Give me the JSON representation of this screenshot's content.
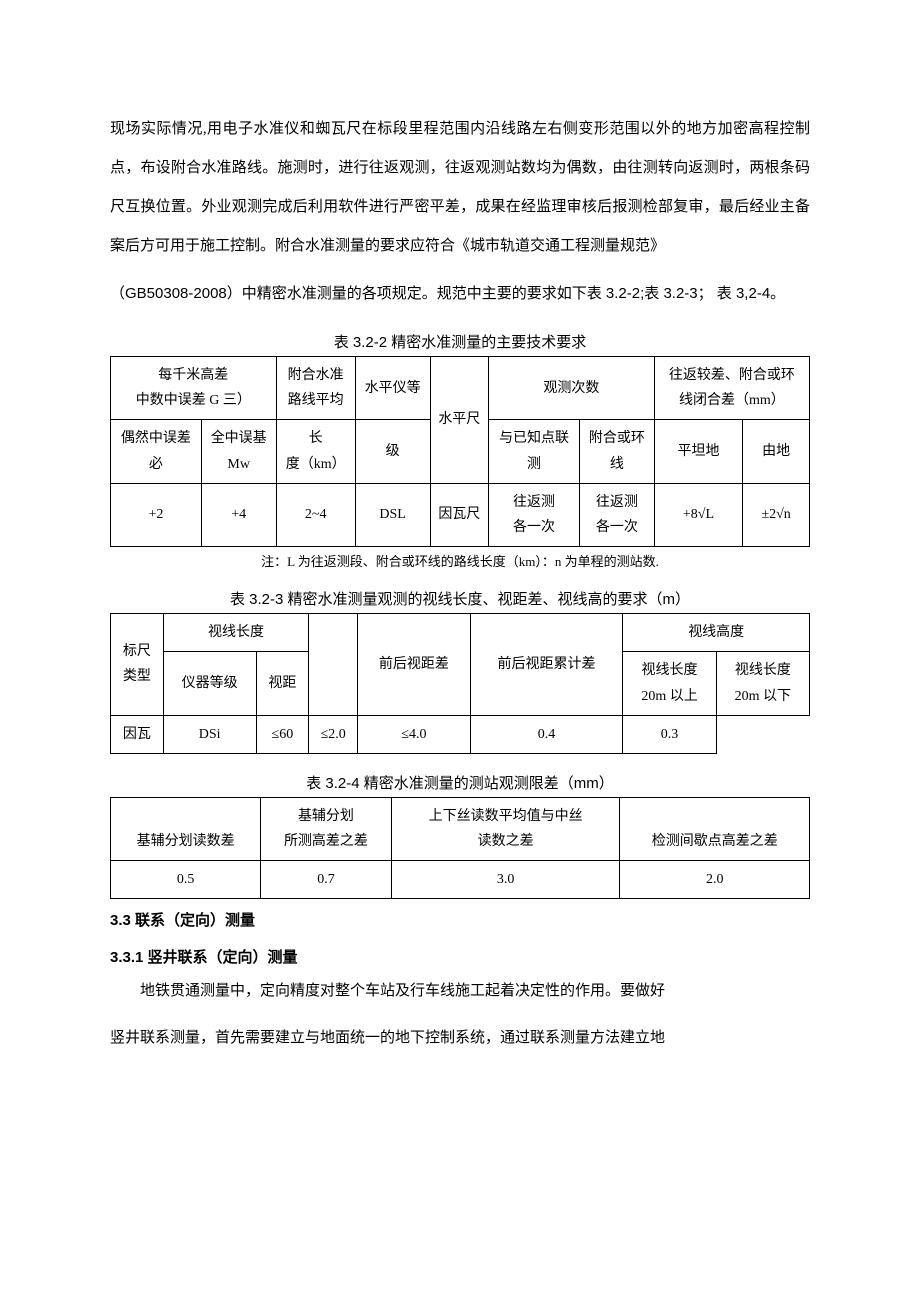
{
  "paragraph1": "现场实际情况,用电子水准仪和蜘瓦尺在标段里程范围内沿线路左右侧变形范围以外的地方加密高程控制点，布设附合水准路线。施测时，进行往返观测，往返观测站数均为偶数，由往测转向返测时，两根条码尺互换位置。外业观测完成后利用软件进行严密平差，成果在经监理审核后报测检部复审，最后经业主备案后方可用于施工控制。附合水准测量的要求应符合《城市轨道交通工程测量规范》",
  "paragraph2": "（GB50308-2008）中精密水准测量的各项规定。规范中主要的要求如下表 3.2-2;表 3.2-3； 表 3,2-4。",
  "table1": {
    "caption": "表 3.2-2 精密水准测量的主要技术要求",
    "h_col12": "每千米高差\n中数中误差 G 三）",
    "h_col3": "附合水准\n路线平均",
    "h_col4": "水平仪等",
    "h_col5": "水平尺",
    "h_col67": "观测次数",
    "h_col89": "往返较差、附合或环\n线闭合差（mm）",
    "sub_c1": "偶然中误差\n必",
    "sub_c2": "全中误基\nMw",
    "sub_c3": "长\n度（km）",
    "sub_c4": "级",
    "sub_c6": "与已知点联\n测",
    "sub_c7": "附合或环\n线",
    "sub_c8": "平坦地",
    "sub_c9": "由地",
    "row": [
      "+2",
      "+4",
      "2~4",
      "DSL",
      "因瓦尺",
      "往返测\n各一次",
      "往返测\n各一次",
      "+8√L",
      "±2√n"
    ],
    "note": "注：L 为往返测段、附合或环线的路线长度（km）：n 为单程的测站数."
  },
  "table2": {
    "caption": "表 3.2-3 精密水准测量观测的视线长度、视距差、视线高的要求（m）",
    "h_c1": "标尺\n类型",
    "h_c23": "视线长度",
    "h_c4_blank": "",
    "h_c5": "前后视距差",
    "h_c6": "前后视距累计差",
    "h_c78": "视线高度",
    "sub_c2": "仪器等级",
    "sub_c3": "视距",
    "sub_c7": "视线长度\n20m 以上",
    "sub_c8": "视线长度\n20m 以下",
    "row": [
      "因瓦",
      "DSi",
      "≤60",
      "≤2.0",
      "",
      "≤4.0",
      "0.4",
      "0.3"
    ]
  },
  "table3": {
    "caption": "表 3.2-4 精密水准测量的测站观测限差（mm）",
    "h_c1": "基辅分划读数差",
    "h_c2": "基辅分划\n所测高差之差",
    "h_c3": "上下丝读数平均值与中丝\n读数之差",
    "h_c4": "检测间歇点高差之差",
    "row": [
      "0.5",
      "0.7",
      "3.0",
      "2.0"
    ]
  },
  "heading1": "3.3 联系（定向）测量",
  "heading2": "3.3.1 竖井联系（定向）测量",
  "paragraph3": "地铁贯通测量中，定向精度对整个车站及行车线施工起着决定性的作用。要做好",
  "paragraph4": "竖井联系测量，首先需要建立与地面统一的地下控制系统，通过联系测量方法建立地"
}
